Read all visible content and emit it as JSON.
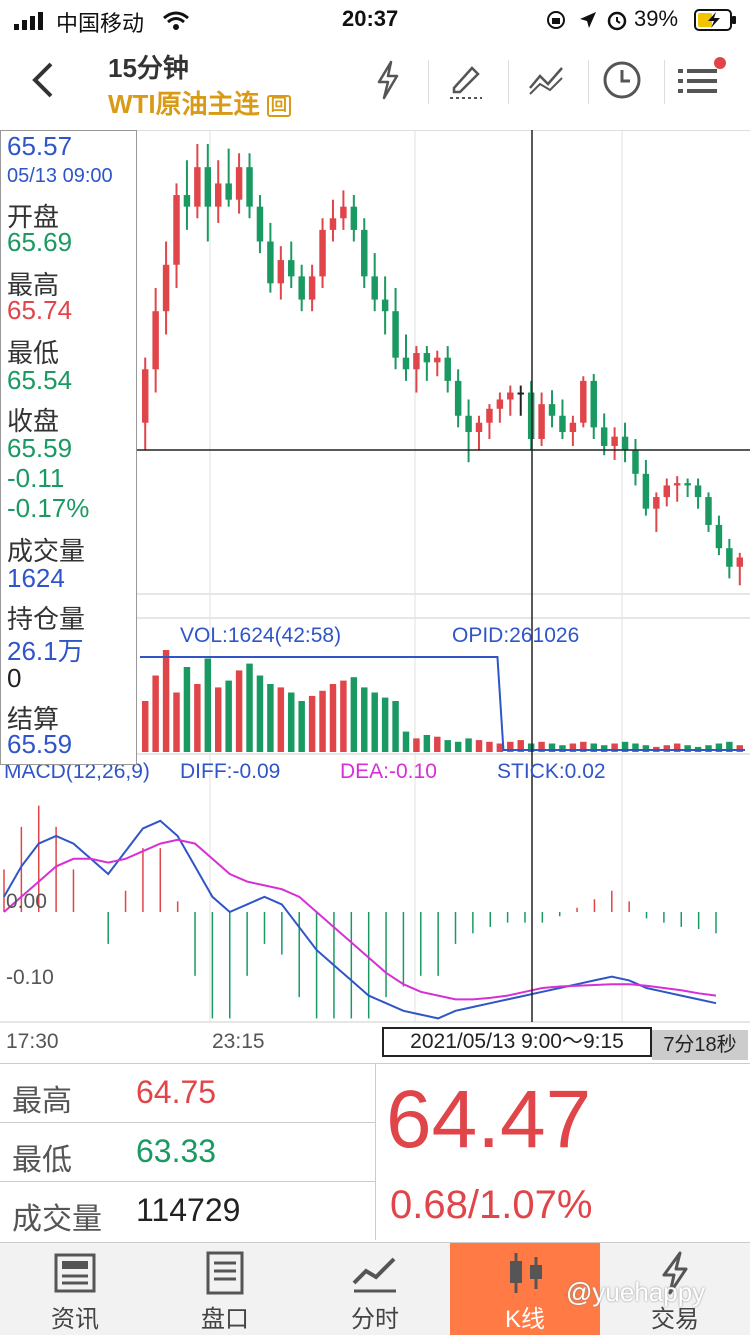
{
  "status_bar": {
    "carrier": "中国移动",
    "time": "20:37",
    "battery": "39%",
    "icons": [
      "signal-icon",
      "wifi-icon",
      "orientation-lock-icon",
      "location-icon",
      "alarm-icon",
      "battery-charging-icon"
    ]
  },
  "header": {
    "period": "15分钟",
    "symbol": "WTI原油主连",
    "symbol_badge": "回",
    "back_icon": "chevron-left-icon",
    "actions": [
      "flash-icon",
      "draw-icon",
      "indicator-icon",
      "clock-icon",
      "menu-icon"
    ]
  },
  "info_panel": {
    "price": "65.57",
    "datetime": "05/13 09:00",
    "open_label": "开盘",
    "open": "65.69",
    "high_label": "最高",
    "high": "65.74",
    "low_label": "最低",
    "low": "65.54",
    "close_label": "收盘",
    "close": "65.59",
    "change": "-0.11",
    "change_pct": "-0.17%",
    "volume_label": "成交量",
    "volume": "1624",
    "oi_label": "持仓量",
    "oi": "26.1万",
    "oi_change": "0",
    "settle_label": "结算",
    "settle": "65.59"
  },
  "volume_panel": {
    "vol_text": "VOL:1624(42:58)",
    "opid_text": "OPID:261026"
  },
  "macd_panel": {
    "title": "MACD(12,26,9)",
    "diff": "DIFF:-0.09",
    "dea": "DEA:-0.10",
    "stick": "STICK:0.02",
    "level_0": "0.00",
    "level_1": "-0.10"
  },
  "time_axis": {
    "t1": "17:30",
    "t2": "23:15",
    "cursor_range": "2021/05/13 9:00～9:15",
    "countdown": "7分18秒"
  },
  "quote": {
    "high_label": "最高",
    "high": "64.75",
    "low_label": "最低",
    "low": "63.33",
    "volume_label": "成交量",
    "volume": "114729",
    "last": "64.47",
    "change": "0.68/1.07%"
  },
  "tabs": [
    {
      "label": "资讯",
      "icon": "news-icon"
    },
    {
      "label": "盘口",
      "icon": "orderbook-icon"
    },
    {
      "label": "分时",
      "icon": "timeshare-icon"
    },
    {
      "label": "K线",
      "icon": "candlestick-icon",
      "active": true
    },
    {
      "label": "交易",
      "icon": "trade-icon"
    }
  ],
  "watermark": "@yuehappy",
  "colors": {
    "up": "#e0454a",
    "down": "#1a9a62",
    "diff_line": "#2f55c8",
    "dea_line": "#d62fd6",
    "active_tab": "#ff7a45",
    "gold": "#d99a16"
  },
  "chart_data": {
    "type": "candlestick",
    "candles": [
      {
        "o": 64.52,
        "h": 64.8,
        "l": 64.4,
        "c": 64.75
      },
      {
        "o": 64.75,
        "h": 65.1,
        "l": 64.65,
        "c": 65.0
      },
      {
        "o": 65.0,
        "h": 65.3,
        "l": 64.9,
        "c": 65.2
      },
      {
        "o": 65.2,
        "h": 65.55,
        "l": 65.1,
        "c": 65.5
      },
      {
        "o": 65.5,
        "h": 65.65,
        "l": 65.35,
        "c": 65.45
      },
      {
        "o": 65.45,
        "h": 65.72,
        "l": 65.4,
        "c": 65.62
      },
      {
        "o": 65.62,
        "h": 65.72,
        "l": 65.3,
        "c": 65.45
      },
      {
        "o": 65.45,
        "h": 65.65,
        "l": 65.38,
        "c": 65.55
      },
      {
        "o": 65.55,
        "h": 65.7,
        "l": 65.45,
        "c": 65.48
      },
      {
        "o": 65.48,
        "h": 65.68,
        "l": 65.42,
        "c": 65.62
      },
      {
        "o": 65.62,
        "h": 65.68,
        "l": 65.4,
        "c": 65.45
      },
      {
        "o": 65.45,
        "h": 65.5,
        "l": 65.25,
        "c": 65.3
      },
      {
        "o": 65.3,
        "h": 65.38,
        "l": 65.08,
        "c": 65.12
      },
      {
        "o": 65.12,
        "h": 65.28,
        "l": 65.05,
        "c": 65.22
      },
      {
        "o": 65.22,
        "h": 65.3,
        "l": 65.1,
        "c": 65.15
      },
      {
        "o": 65.15,
        "h": 65.2,
        "l": 65.0,
        "c": 65.05
      },
      {
        "o": 65.05,
        "h": 65.2,
        "l": 65.0,
        "c": 65.15
      },
      {
        "o": 65.15,
        "h": 65.4,
        "l": 65.1,
        "c": 65.35
      },
      {
        "o": 65.35,
        "h": 65.48,
        "l": 65.3,
        "c": 65.4
      },
      {
        "o": 65.4,
        "h": 65.52,
        "l": 65.35,
        "c": 65.45
      },
      {
        "o": 65.45,
        "h": 65.5,
        "l": 65.3,
        "c": 65.35
      },
      {
        "o": 65.35,
        "h": 65.4,
        "l": 65.1,
        "c": 65.15
      },
      {
        "o": 65.15,
        "h": 65.25,
        "l": 65.0,
        "c": 65.05
      },
      {
        "o": 65.05,
        "h": 65.15,
        "l": 64.9,
        "c": 65.0
      },
      {
        "o": 65.0,
        "h": 65.1,
        "l": 64.75,
        "c": 64.8
      },
      {
        "o": 64.8,
        "h": 64.9,
        "l": 64.7,
        "c": 64.75
      },
      {
        "o": 64.75,
        "h": 64.85,
        "l": 64.65,
        "c": 64.82
      },
      {
        "o": 64.82,
        "h": 64.85,
        "l": 64.7,
        "c": 64.78
      },
      {
        "o": 64.78,
        "h": 64.83,
        "l": 64.72,
        "c": 64.8
      },
      {
        "o": 64.8,
        "h": 64.85,
        "l": 64.65,
        "c": 64.7
      },
      {
        "o": 64.7,
        "h": 64.75,
        "l": 64.5,
        "c": 64.55
      },
      {
        "o": 64.55,
        "h": 64.62,
        "l": 64.35,
        "c": 64.48
      },
      {
        "o": 64.48,
        "h": 64.55,
        "l": 64.4,
        "c": 64.52
      },
      {
        "o": 64.52,
        "h": 64.6,
        "l": 64.45,
        "c": 64.58
      },
      {
        "o": 64.58,
        "h": 64.65,
        "l": 64.52,
        "c": 64.62
      },
      {
        "o": 64.62,
        "h": 64.68,
        "l": 64.55,
        "c": 64.65
      },
      {
        "o": 64.65,
        "h": 64.68,
        "l": 64.55,
        "c": 64.65
      },
      {
        "o": 64.65,
        "h": 64.7,
        "l": 64.4,
        "c": 64.45
      },
      {
        "o": 64.45,
        "h": 64.65,
        "l": 64.42,
        "c": 64.6
      },
      {
        "o": 64.6,
        "h": 64.66,
        "l": 64.5,
        "c": 64.55
      },
      {
        "o": 64.55,
        "h": 64.62,
        "l": 64.45,
        "c": 64.48
      },
      {
        "o": 64.48,
        "h": 64.55,
        "l": 64.42,
        "c": 64.52
      },
      {
        "o": 64.52,
        "h": 64.72,
        "l": 64.5,
        "c": 64.7
      },
      {
        "o": 64.7,
        "h": 64.73,
        "l": 64.45,
        "c": 64.5
      },
      {
        "o": 64.5,
        "h": 64.56,
        "l": 64.38,
        "c": 64.42
      },
      {
        "o": 64.42,
        "h": 64.5,
        "l": 64.36,
        "c": 64.46
      },
      {
        "o": 64.46,
        "h": 64.52,
        "l": 64.35,
        "c": 64.4
      },
      {
        "o": 64.4,
        "h": 64.45,
        "l": 64.25,
        "c": 64.3
      },
      {
        "o": 64.3,
        "h": 64.36,
        "l": 64.12,
        "c": 64.15
      },
      {
        "o": 64.15,
        "h": 64.22,
        "l": 64.05,
        "c": 64.2
      },
      {
        "o": 64.2,
        "h": 64.28,
        "l": 64.16,
        "c": 64.25
      },
      {
        "o": 64.25,
        "h": 64.29,
        "l": 64.18,
        "c": 64.26
      },
      {
        "o": 64.26,
        "h": 64.28,
        "l": 64.2,
        "c": 64.25
      },
      {
        "o": 64.25,
        "h": 64.28,
        "l": 64.15,
        "c": 64.2
      },
      {
        "o": 64.2,
        "h": 64.22,
        "l": 64.05,
        "c": 64.08
      },
      {
        "o": 64.08,
        "h": 64.12,
        "l": 63.95,
        "c": 63.98
      },
      {
        "o": 63.98,
        "h": 64.02,
        "l": 63.85,
        "c": 63.9
      },
      {
        "o": 63.9,
        "h": 63.96,
        "l": 63.82,
        "c": 63.94
      }
    ],
    "volume": [
      30,
      45,
      60,
      35,
      50,
      40,
      55,
      38,
      42,
      48,
      52,
      45,
      40,
      38,
      35,
      30,
      33,
      36,
      40,
      42,
      44,
      38,
      35,
      32,
      30,
      12,
      8,
      10,
      9,
      7,
      6,
      8,
      7,
      6,
      5,
      6,
      7,
      5,
      6,
      5,
      4,
      5,
      6,
      5,
      4,
      5,
      6,
      5,
      4,
      3,
      4,
      5,
      4,
      3,
      4,
      5,
      6,
      4
    ],
    "opid_line": "flat high then drops near cursor",
    "macd": {
      "diff": [
        0.02,
        0.06,
        0.09,
        0.1,
        0.09,
        0.07,
        0.05,
        0.08,
        0.11,
        0.12,
        0.1,
        0.06,
        0.02,
        0.0,
        0.01,
        0.02,
        0.01,
        -0.02,
        -0.05,
        -0.07,
        -0.09,
        -0.11,
        -0.12,
        -0.13,
        -0.135,
        -0.14,
        -0.13,
        -0.125,
        -0.12,
        -0.115,
        -0.11,
        -0.105,
        -0.1,
        -0.095,
        -0.09,
        -0.085,
        -0.09,
        -0.1,
        -0.105,
        -0.11,
        -0.115,
        -0.12
      ],
      "dea": [
        0.0,
        0.02,
        0.04,
        0.06,
        0.07,
        0.07,
        0.065,
        0.07,
        0.08,
        0.09,
        0.095,
        0.09,
        0.07,
        0.05,
        0.04,
        0.035,
        0.03,
        0.02,
        0.0,
        -0.02,
        -0.04,
        -0.06,
        -0.08,
        -0.095,
        -0.105,
        -0.11,
        -0.115,
        -0.115,
        -0.113,
        -0.11,
        -0.105,
        -0.1,
        -0.098,
        -0.097,
        -0.096,
        -0.095,
        -0.095,
        -0.097,
        -0.1,
        -0.103,
        -0.107,
        -0.11
      ]
    },
    "macd_levels": [
      "0.00",
      "-0.10"
    ],
    "x_ticks": [
      "17:30",
      "23:15"
    ]
  }
}
